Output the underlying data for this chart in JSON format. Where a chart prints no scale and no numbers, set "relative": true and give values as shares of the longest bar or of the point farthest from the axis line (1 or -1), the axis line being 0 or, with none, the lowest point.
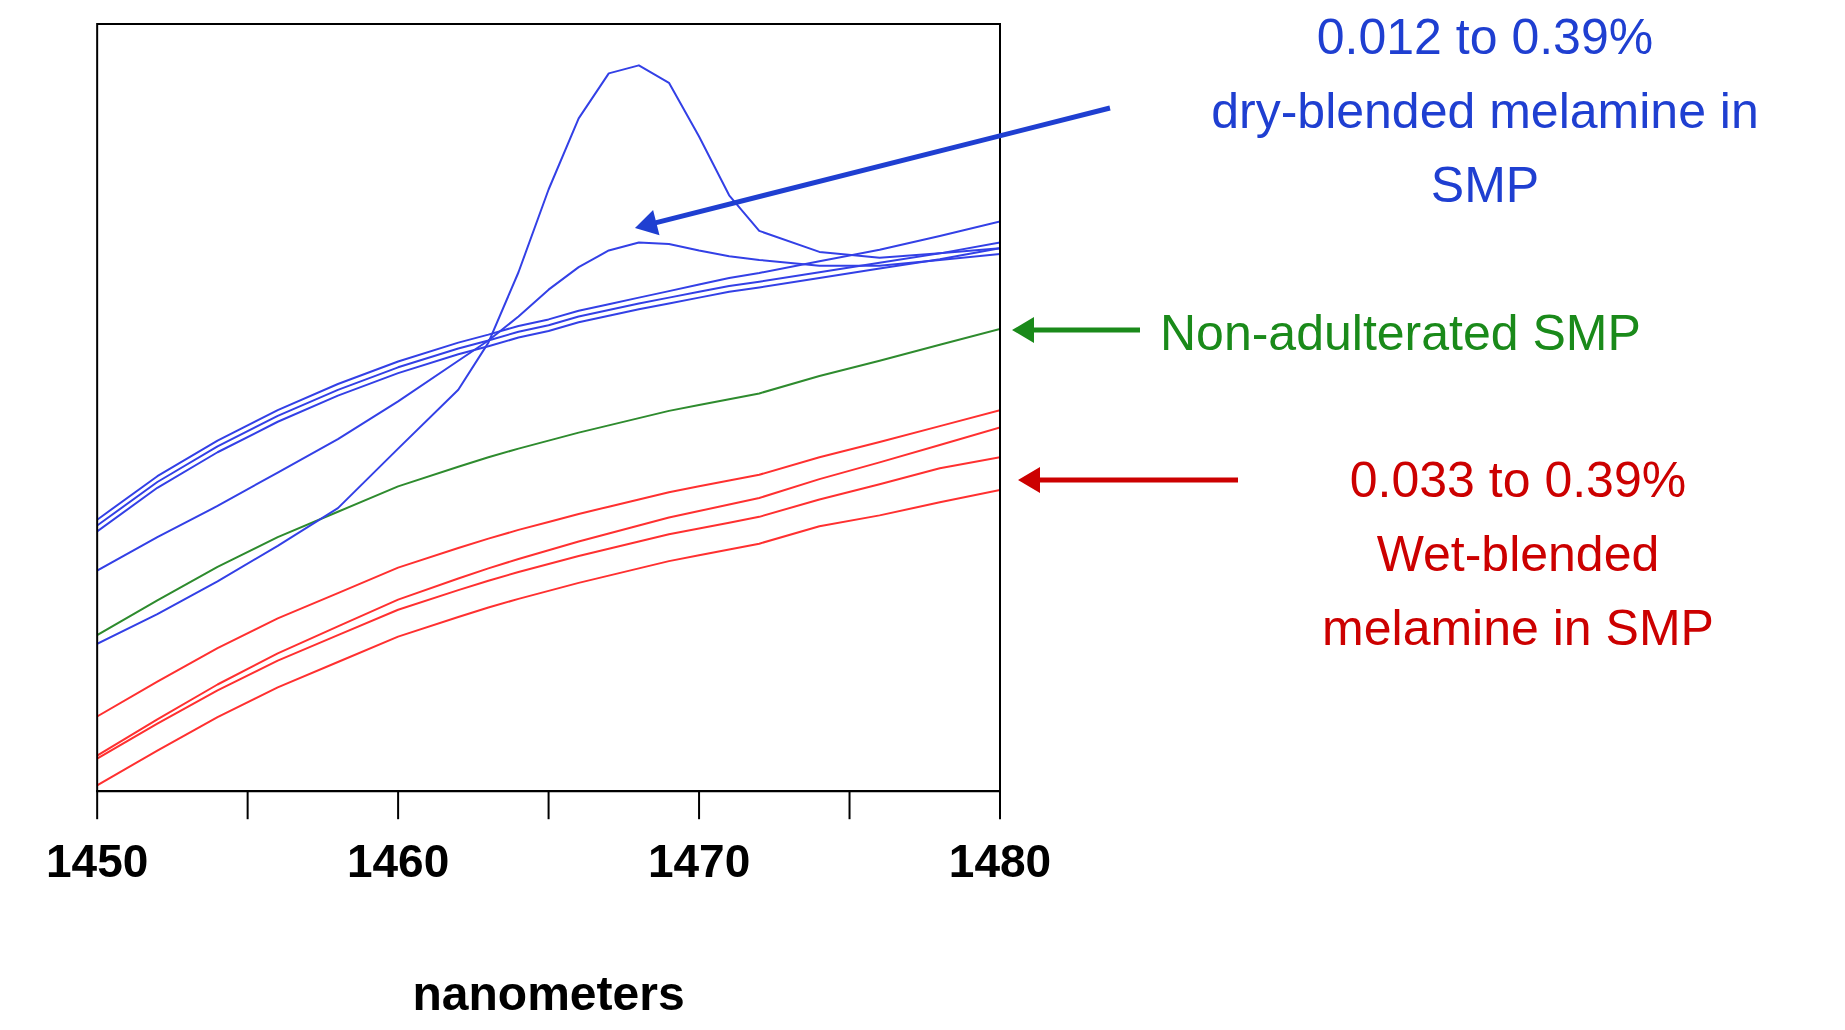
{
  "chart_data": {
    "type": "line",
    "relative": true,
    "xlabel": "nanometers",
    "xlim": [
      1450,
      1480
    ],
    "xticks": [
      1450,
      1460,
      1470,
      1480
    ],
    "x": [
      1450,
      1452,
      1454,
      1456,
      1458,
      1460,
      1462,
      1463,
      1464,
      1465,
      1466,
      1467,
      1468,
      1469,
      1470,
      1471,
      1472,
      1474,
      1476,
      1478,
      1480
    ],
    "grid": false,
    "legend": false,
    "marker": "none",
    "line_style": "solid",
    "series": [
      {
        "color": "#3340e6",
        "values": [
          0.358,
          0.418,
          0.467,
          0.509,
          0.545,
          0.576,
          0.602,
          0.613,
          0.625,
          0.634,
          0.646,
          0.655,
          0.664,
          0.672,
          0.68,
          0.688,
          0.694,
          0.707,
          0.72,
          0.733,
          0.748
        ]
      },
      {
        "color": "#3340e6",
        "values": [
          0.366,
          0.426,
          0.475,
          0.517,
          0.553,
          0.584,
          0.61,
          0.621,
          0.633,
          0.642,
          0.654,
          0.663,
          0.672,
          0.68,
          0.688,
          0.696,
          0.702,
          0.715,
          0.728,
          0.741,
          0.756
        ]
      },
      {
        "color": "#3340e6",
        "values": [
          0.374,
          0.434,
          0.483,
          0.525,
          0.561,
          0.592,
          0.618,
          0.629,
          0.641,
          0.65,
          0.662,
          0.671,
          0.68,
          0.689,
          0.698,
          0.707,
          0.714,
          0.73,
          0.746,
          0.765,
          0.785
        ]
      },
      {
        "color": "#3340e6",
        "values": [
          0.304,
          0.35,
          0.393,
          0.439,
          0.485,
          0.537,
          0.593,
          0.621,
          0.654,
          0.691,
          0.722,
          0.745,
          0.756,
          0.754,
          0.745,
          0.737,
          0.732,
          0.724,
          0.724,
          0.732,
          0.74
        ]
      },
      {
        "color": "#3340e6",
        "values": [
          0.203,
          0.244,
          0.289,
          0.338,
          0.39,
          0.472,
          0.553,
          0.618,
          0.715,
          0.829,
          0.927,
          0.989,
          1.0,
          0.976,
          0.902,
          0.821,
          0.772,
          0.743,
          0.735,
          0.741,
          0.748
        ]
      },
      {
        "color": "#2e8b2e",
        "values": [
          0.215,
          0.263,
          0.309,
          0.35,
          0.385,
          0.42,
          0.447,
          0.46,
          0.472,
          0.483,
          0.494,
          0.504,
          0.514,
          0.524,
          0.532,
          0.54,
          0.548,
          0.572,
          0.593,
          0.615,
          0.637
        ]
      },
      {
        "color": "#ff3030",
        "values": [
          0.103,
          0.151,
          0.197,
          0.238,
          0.273,
          0.308,
          0.335,
          0.348,
          0.36,
          0.371,
          0.382,
          0.392,
          0.402,
          0.412,
          0.42,
          0.428,
          0.436,
          0.46,
          0.481,
          0.503,
          0.525
        ]
      },
      {
        "color": "#ff3030",
        "values": [
          0.049,
          0.099,
          0.147,
          0.19,
          0.227,
          0.264,
          0.293,
          0.307,
          0.32,
          0.332,
          0.344,
          0.355,
          0.366,
          0.377,
          0.386,
          0.395,
          0.404,
          0.43,
          0.453,
          0.477,
          0.501
        ]
      },
      {
        "color": "#ff3030",
        "values": [
          0.045,
          0.093,
          0.139,
          0.18,
          0.215,
          0.25,
          0.277,
          0.29,
          0.302,
          0.313,
          0.324,
          0.334,
          0.344,
          0.354,
          0.362,
          0.37,
          0.378,
          0.402,
          0.423,
          0.445,
          0.46
        ]
      },
      {
        "color": "#ff3030",
        "values": [
          0.008,
          0.056,
          0.102,
          0.143,
          0.178,
          0.213,
          0.24,
          0.253,
          0.265,
          0.276,
          0.287,
          0.297,
          0.307,
          0.317,
          0.325,
          0.333,
          0.341,
          0.365,
          0.38,
          0.398,
          0.415
        ]
      }
    ],
    "annotations": [
      "0.012 to 0.39% dry-blended melamine in SMP",
      "Non-adulterated SMP",
      "0.033 to 0.39% Wet-blended melamine in SMP"
    ]
  }
}
